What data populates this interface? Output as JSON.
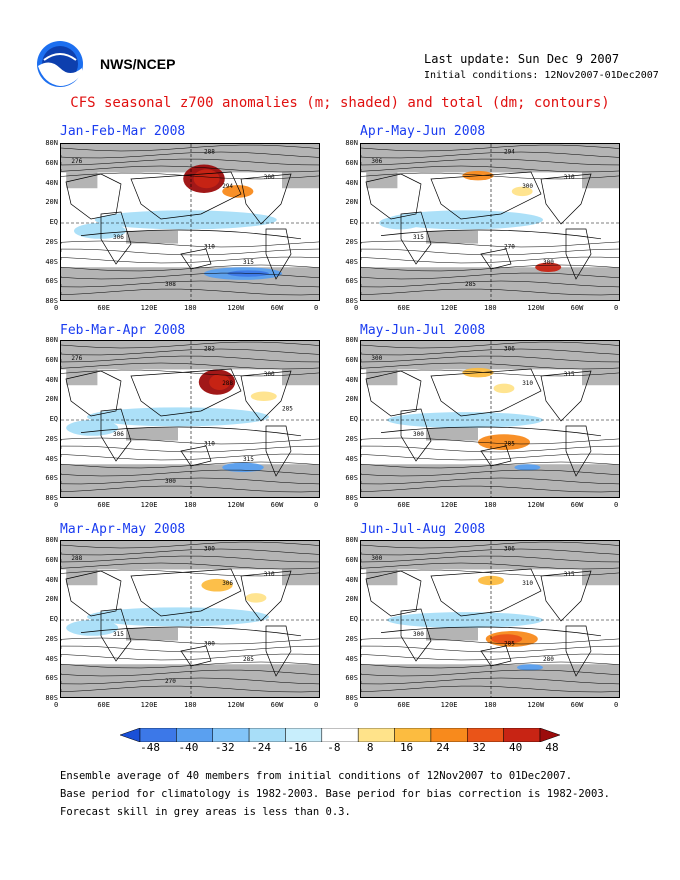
{
  "header": {
    "org": "NWS/NCEP",
    "last_update": "Last update: Sun Dec  9 2007",
    "initial_conditions": "Initial conditions: 12Nov2007-01Dec2007"
  },
  "title": "CFS seasonal z700 anomalies (m; shaded) and total (dm; contours)",
  "panels": [
    {
      "title": "Jan-Feb-Mar 2008",
      "contour_labels": [
        "276",
        "288",
        "294",
        "300",
        "306",
        "310",
        "315",
        "308"
      ]
    },
    {
      "title": "Apr-May-Jun 2008",
      "contour_labels": [
        "306",
        "294",
        "300",
        "310",
        "315",
        "270",
        "300",
        "285"
      ]
    },
    {
      "title": "Feb-Mar-Apr 2008",
      "contour_labels": [
        "276",
        "282",
        "288",
        "300",
        "306",
        "310",
        "315",
        "300",
        "285"
      ]
    },
    {
      "title": "May-Jun-Jul 2008",
      "contour_labels": [
        "300",
        "306",
        "310",
        "315",
        "300",
        "285"
      ]
    },
    {
      "title": "Mar-Apr-May 2008",
      "contour_labels": [
        "288",
        "300",
        "306",
        "310",
        "315",
        "300",
        "285",
        "270"
      ]
    },
    {
      "title": "Jun-Jul-Aug 2008",
      "contour_labels": [
        "300",
        "306",
        "310",
        "315",
        "300",
        "285",
        "280"
      ]
    }
  ],
  "lat_labels": [
    "80N",
    "60N",
    "40N",
    "20N",
    "EQ",
    "20S",
    "40S",
    "60S",
    "80S"
  ],
  "lon_labels": [
    "0",
    "60E",
    "120E",
    "180",
    "120W",
    "60W",
    "0"
  ],
  "colorbar": {
    "labels": [
      "-48",
      "-40",
      "-32",
      "-24",
      "-16",
      "-8",
      "8",
      "16",
      "24",
      "32",
      "40",
      "48"
    ],
    "colors": [
      "#1a50d8",
      "#3c78e8",
      "#5aa0f0",
      "#82c4f8",
      "#a8def8",
      "#c8eefc",
      "#ffffff",
      "#ffe38a",
      "#fcbc40",
      "#f88a1c",
      "#ea5418",
      "#c82414",
      "#9c0c0c"
    ]
  },
  "footer": [
    "Ensemble average of 40 members from initial conditions of 12Nov2007 to 01Dec2007.",
    "Base period for climatology is 1982-2003. Base period for bias correction is 1982-2003.",
    "Forecast skill in grey areas is less than 0.3."
  ]
}
